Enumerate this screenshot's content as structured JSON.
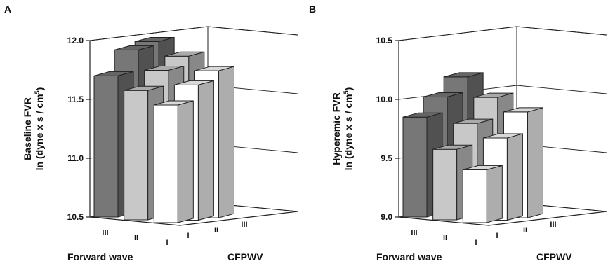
{
  "chart_data": [
    {
      "panel": "A",
      "type": "bar",
      "ylabel_line1": "Baseline FVR",
      "ylabel_line2": "ln (dyne x s / cm",
      "ylabel_sup": "5",
      "ylabel_close": ")",
      "ylim": [
        10.5,
        12.0
      ],
      "yticks": [
        "10.5",
        "11.0",
        "11.5",
        "12.0"
      ],
      "x_axis_label": "Forward wave",
      "x_categories": [
        "III",
        "II",
        "I"
      ],
      "depth_axis_label": "CFPWV",
      "depth_categories": [
        "I",
        "II",
        "III"
      ],
      "grid": true,
      "colors": {
        "III": "#777777",
        "II": "#c8c8c8",
        "I": "#ffffff"
      },
      "bars": [
        {
          "forward_wave": "III",
          "cfpwv": "I",
          "value": 11.7
        },
        {
          "forward_wave": "II",
          "cfpwv": "I",
          "value": 11.6
        },
        {
          "forward_wave": "I",
          "cfpwv": "I",
          "value": 11.5
        },
        {
          "forward_wave": "III",
          "cfpwv": "II",
          "value": 11.9
        },
        {
          "forward_wave": "II",
          "cfpwv": "II",
          "value": 11.75
        },
        {
          "forward_wave": "I",
          "cfpwv": "II",
          "value": 11.65
        },
        {
          "forward_wave": "III",
          "cfpwv": "III",
          "value": 11.95
        },
        {
          "forward_wave": "II",
          "cfpwv": "III",
          "value": 11.85
        },
        {
          "forward_wave": "I",
          "cfpwv": "III",
          "value": 11.75
        }
      ]
    },
    {
      "panel": "B",
      "type": "bar",
      "ylabel_line1": "Hyperemic FVR",
      "ylabel_line2": "ln (dyne x s / cm",
      "ylabel_sup": "5",
      "ylabel_close": ")",
      "ylim": [
        9.0,
        10.5
      ],
      "yticks": [
        "9.0",
        "9.5",
        "10.0",
        "10.5"
      ],
      "x_axis_label": "Forward wave",
      "x_categories": [
        "III",
        "II",
        "I"
      ],
      "depth_axis_label": "CFPWV",
      "depth_categories": [
        "I",
        "II",
        "III"
      ],
      "grid": true,
      "colors": {
        "III": "#777777",
        "II": "#c8c8c8",
        "I": "#ffffff"
      },
      "bars": [
        {
          "forward_wave": "III",
          "cfpwv": "I",
          "value": 9.85
        },
        {
          "forward_wave": "II",
          "cfpwv": "I",
          "value": 9.6
        },
        {
          "forward_wave": "I",
          "cfpwv": "I",
          "value": 9.45
        },
        {
          "forward_wave": "III",
          "cfpwv": "II",
          "value": 10.0
        },
        {
          "forward_wave": "II",
          "cfpwv": "II",
          "value": 9.8
        },
        {
          "forward_wave": "I",
          "cfpwv": "II",
          "value": 9.7
        },
        {
          "forward_wave": "III",
          "cfpwv": "III",
          "value": 10.15
        },
        {
          "forward_wave": "II",
          "cfpwv": "III",
          "value": 10.0
        },
        {
          "forward_wave": "I",
          "cfpwv": "III",
          "value": 9.9
        }
      ]
    }
  ]
}
